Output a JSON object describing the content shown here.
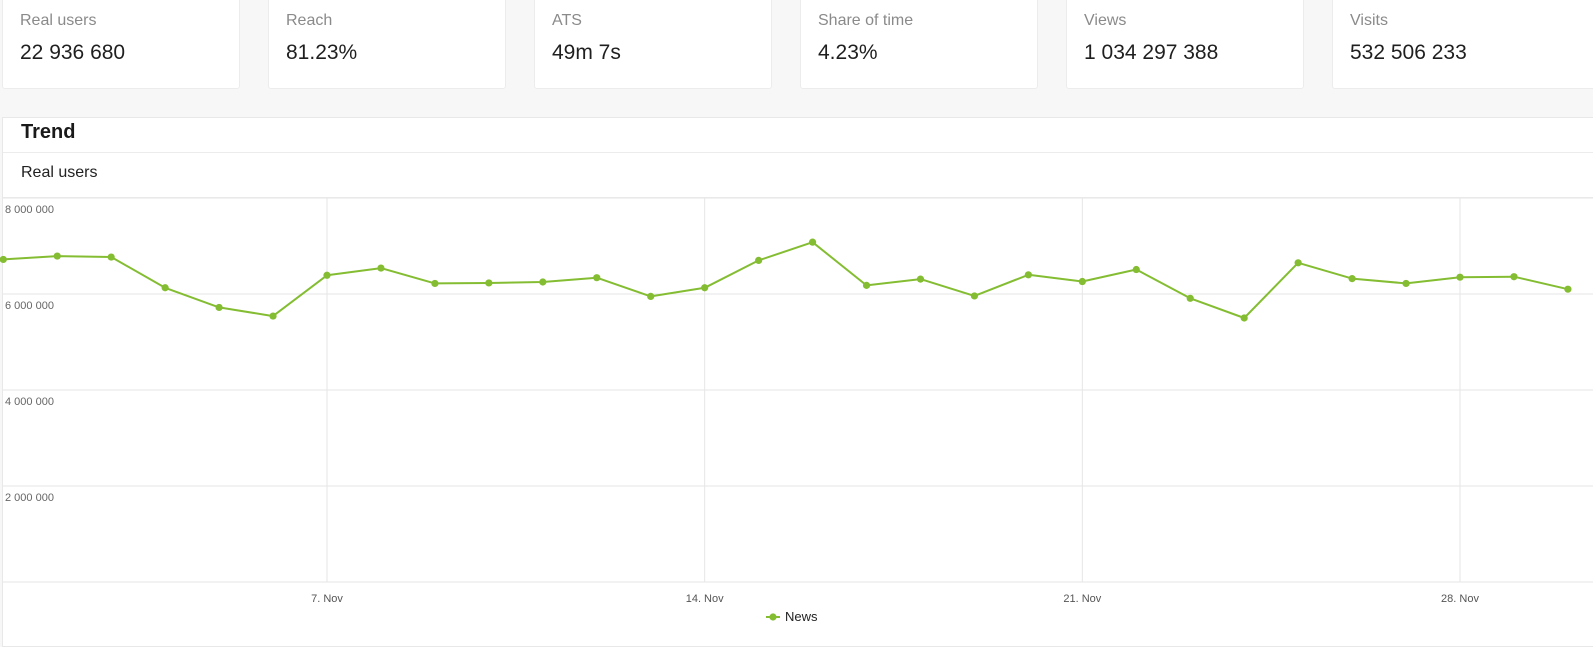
{
  "kpis": [
    {
      "label": "Real users",
      "value": "22 936 680"
    },
    {
      "label": "Reach",
      "value": "81.23%"
    },
    {
      "label": "ATS",
      "value": "49m 7s"
    },
    {
      "label": "Share of time",
      "value": "4.23%"
    },
    {
      "label": "Views",
      "value": "1 034 297 388"
    },
    {
      "label": "Visits",
      "value": "532 506 233"
    }
  ],
  "panel": {
    "title": "Trend",
    "metric": "Real users"
  },
  "colors": {
    "series": "#84bd32",
    "grid": "#e6e6e6"
  },
  "chart_data": {
    "type": "line",
    "title": "",
    "xlabel": "",
    "ylabel": "",
    "ylim": [
      0,
      8000000
    ],
    "yticks": [
      2000000,
      4000000,
      6000000,
      8000000
    ],
    "ytick_labels": [
      "2 000 000",
      "4 000 000",
      "6 000 000",
      "8 000 000"
    ],
    "x_tick_labels": [
      "7. Nov",
      "14. Nov",
      "21. Nov",
      "28. Nov"
    ],
    "x_tick_days": [
      7,
      14,
      21,
      28
    ],
    "legend": "bottom-center",
    "series": [
      {
        "name": "News",
        "color": "#84bd32",
        "x": [
          1,
          2,
          3,
          4,
          5,
          6,
          7,
          8,
          9,
          10,
          11,
          12,
          13,
          14,
          15,
          16,
          17,
          18,
          19,
          20,
          21,
          22,
          23,
          24,
          25,
          26,
          27,
          28,
          29,
          30
        ],
        "values": [
          6720000,
          6790000,
          6770000,
          6130000,
          5720000,
          5540000,
          6390000,
          6540000,
          6220000,
          6230000,
          6250000,
          6340000,
          5950000,
          6130000,
          6700000,
          7080000,
          6180000,
          6310000,
          5960000,
          6400000,
          6260000,
          6510000,
          5910000,
          5500000,
          6650000,
          6320000,
          6220000,
          6350000,
          6360000,
          6100000
        ]
      }
    ]
  }
}
